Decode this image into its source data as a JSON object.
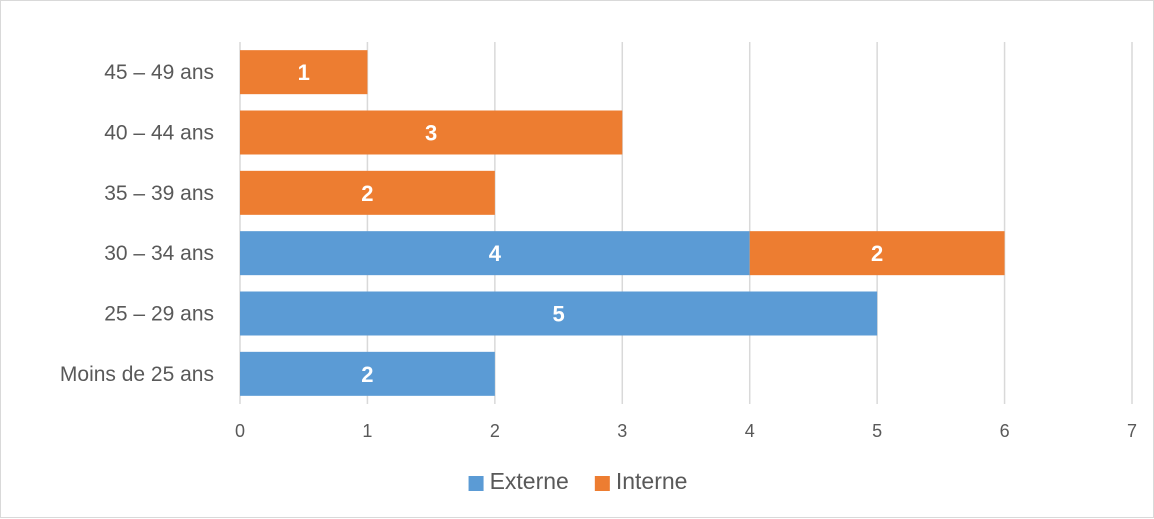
{
  "chart_data": {
    "type": "bar",
    "orientation": "horizontal",
    "stacked": true,
    "categories": [
      "Moins de 25 ans",
      "25 – 29 ans",
      "30 – 34 ans",
      "35 – 39 ans",
      "40 – 44 ans",
      "45 – 49 ans"
    ],
    "series": [
      {
        "name": "Externe",
        "values": [
          2,
          5,
          4,
          0,
          0,
          0
        ]
      },
      {
        "name": "Interne",
        "values": [
          0,
          0,
          2,
          2,
          3,
          1
        ]
      }
    ],
    "xlim": [
      0,
      7
    ],
    "xticks": [
      0,
      1,
      2,
      3,
      4,
      5,
      6,
      7
    ],
    "grid": true,
    "legend_position": "bottom",
    "colors": {
      "Externe": "#5b9bd5",
      "Interne": "#ed7d31",
      "grid": "#d9d9d9",
      "text": "#595959"
    }
  }
}
